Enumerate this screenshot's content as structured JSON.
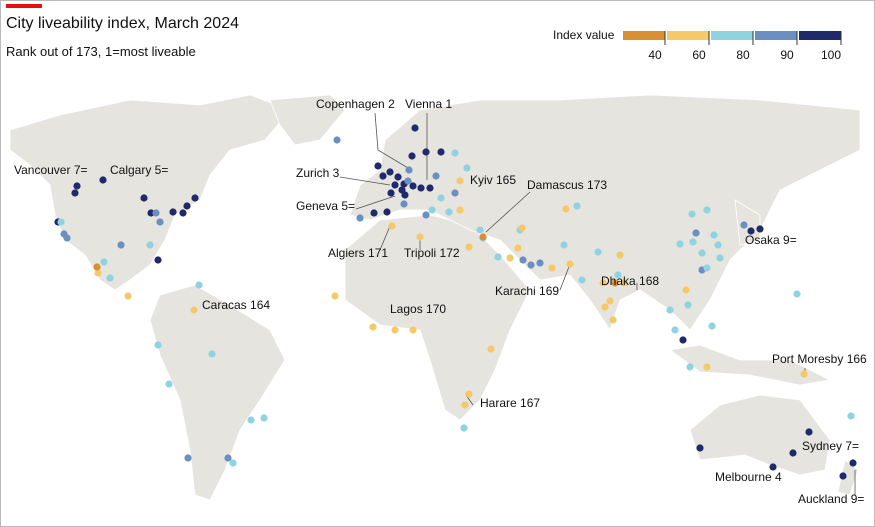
{
  "header": {
    "title": "City liveability index, March 2024",
    "subtitle": "Rank out of 173, 1=most liveable"
  },
  "legend": {
    "title": "Index value",
    "ticks": [
      40,
      60,
      80,
      90,
      100
    ],
    "colors": [
      "#d98f34",
      "#f5c96a",
      "#8fd3e0",
      "#6b8fc0",
      "#1f2a6b"
    ]
  },
  "labels": [
    "Vancouver 7=",
    "Calgary 5=",
    "Copenhagen 2",
    "Vienna 1",
    "Zurich 3",
    "Geneva 5=",
    "Kyiv 165",
    "Damascus 173",
    "Algiers 171",
    "Tripoli 172",
    "Osaka 9=",
    "Karachi 169",
    "Dhaka 168",
    "Caracas 164",
    "Lagos 170",
    "Port Moresby 166",
    "Harare 167",
    "Sydney 7=",
    "Melbourne 4",
    "Auckland 9="
  ]
}
